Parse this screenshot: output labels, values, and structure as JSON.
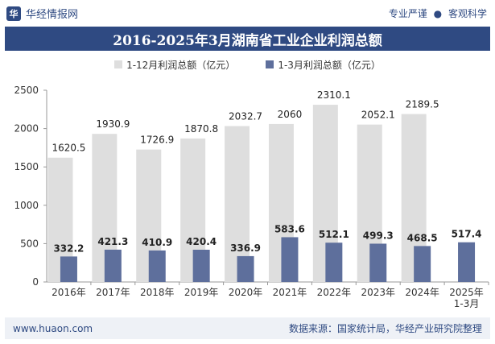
{
  "header": {
    "brand": "华经情报网",
    "tagline_left": "专业严谨",
    "tagline_sep": "●",
    "tagline_right": "客观科学"
  },
  "footer": {
    "website": "www.huaon.com",
    "source": "数据来源：国家统计局，华经产业研究院整理"
  },
  "colors": {
    "series1": "#dedede",
    "series2": "#5e6f9c",
    "brand": "#2f4a82"
  },
  "chart_data": {
    "type": "bar",
    "title": "2016-2025年3月湖南省工业企业利润总额",
    "categories": [
      "2016年",
      "2017年",
      "2018年",
      "2019年",
      "2020年",
      "2021年",
      "2022年",
      "2023年",
      "2024年",
      "2025年\n1-3月"
    ],
    "series": [
      {
        "name": "1-12月利润总额（亿元）",
        "values": [
          1620.5,
          1930.9,
          1726.9,
          1870.8,
          2032.7,
          2060,
          2310.1,
          2052.1,
          2189.5,
          null
        ],
        "labels": [
          "1620.5",
          "1930.9",
          "1726.9",
          "1870.8",
          "2032.7",
          "2060",
          "2310.1",
          "2052.1",
          "2189.5",
          ""
        ]
      },
      {
        "name": "1-3月利润总额（亿元）",
        "values": [
          332.2,
          421.3,
          410.9,
          420.4,
          336.9,
          583.6,
          512.1,
          499.3,
          468.5,
          517.4
        ],
        "labels": [
          "332.2",
          "421.3",
          "410.9",
          "420.4",
          "336.9",
          "583.6",
          "512.1",
          "499.3",
          "468.5",
          "517.4"
        ]
      }
    ],
    "yticks": [
      "0",
      "500",
      "1000",
      "1500",
      "2000",
      "2500"
    ],
    "ylim": [
      0,
      2500
    ],
    "grid": false,
    "legend_position": "top-center"
  }
}
